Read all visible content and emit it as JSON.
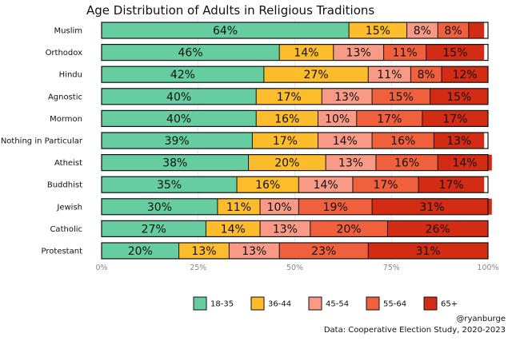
{
  "chart_data": {
    "type": "bar",
    "orientation": "horizontal",
    "stacked": true,
    "title": "Age Distribution of Adults in Religious Traditions",
    "categories": [
      "Muslim",
      "Orthodox",
      "Hindu",
      "Agnostic",
      "Mormon",
      "Nothing in Particular",
      "Atheist",
      "Buddhist",
      "Jewish",
      "Catholic",
      "Protestant"
    ],
    "series": [
      {
        "name": "18-35",
        "color": "#66cda0",
        "values": [
          64,
          46,
          42,
          40,
          40,
          39,
          38,
          35,
          30,
          27,
          20
        ]
      },
      {
        "name": "36-44",
        "color": "#fcbc2c",
        "values": [
          15,
          14,
          27,
          17,
          16,
          17,
          20,
          16,
          11,
          14,
          13
        ]
      },
      {
        "name": "45-54",
        "color": "#f89a86",
        "values": [
          8,
          13,
          11,
          13,
          10,
          14,
          13,
          14,
          10,
          13,
          13
        ]
      },
      {
        "name": "55-64",
        "color": "#f0603c",
        "values": [
          8,
          11,
          8,
          15,
          17,
          16,
          16,
          17,
          19,
          20,
          23
        ]
      },
      {
        "name": "65+",
        "color": "#d42b14",
        "values": [
          4,
          15,
          12,
          15,
          17,
          13,
          14,
          17,
          31,
          26,
          31
        ]
      }
    ],
    "labels": [
      [
        "64%",
        "15%",
        "8%",
        "8%",
        ""
      ],
      [
        "46%",
        "14%",
        "13%",
        "11%",
        "15%"
      ],
      [
        "42%",
        "27%",
        "11%",
        "8%",
        "12%"
      ],
      [
        "40%",
        "17%",
        "13%",
        "15%",
        "15%"
      ],
      [
        "40%",
        "16%",
        "10%",
        "17%",
        "17%"
      ],
      [
        "39%",
        "17%",
        "14%",
        "16%",
        "13%"
      ],
      [
        "38%",
        "20%",
        "13%",
        "16%",
        "14%"
      ],
      [
        "35%",
        "16%",
        "14%",
        "17%",
        "17%"
      ],
      [
        "30%",
        "11%",
        "10%",
        "19%",
        "31%"
      ],
      [
        "27%",
        "14%",
        "13%",
        "20%",
        "26%"
      ],
      [
        "20%",
        "13%",
        "13%",
        "23%",
        "31%"
      ]
    ],
    "xlim": [
      0,
      100
    ],
    "xticks": [
      "0%",
      "25%",
      "50%",
      "75%",
      "100%"
    ],
    "grid": true,
    "legend_position": "bottom"
  },
  "caption": {
    "handle": "@ryanburge",
    "source": "Data: Cooperative Election Study, 2020-2023"
  }
}
